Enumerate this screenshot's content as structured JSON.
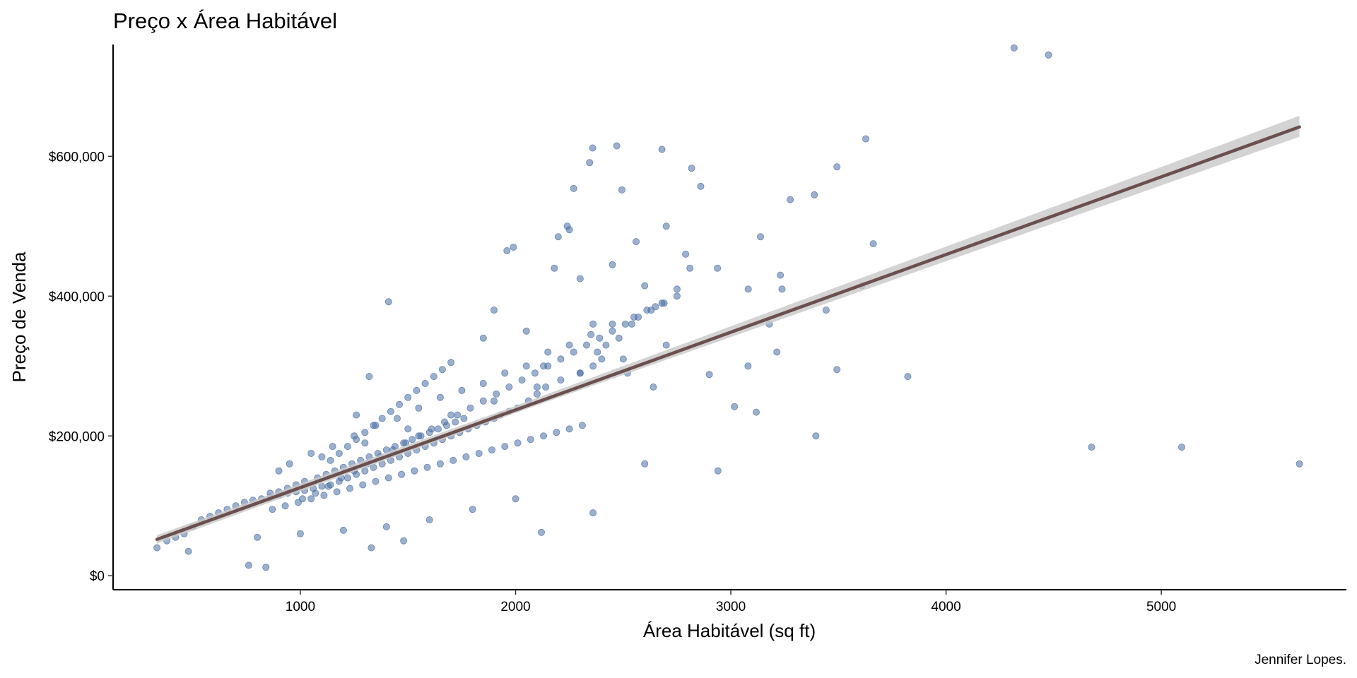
{
  "chart_data": {
    "type": "scatter",
    "title": "Preço x Área Habitável",
    "xlabel": "Área Habitável (sq ft)",
    "ylabel": "Preço de Venda",
    "caption": "Jennifer Lopes.",
    "xlim": [
      130,
      5860
    ],
    "ylim": [
      -20000,
      760000
    ],
    "x_ticks": [
      1000,
      2000,
      3000,
      4000,
      5000
    ],
    "x_tick_labels": [
      "1000",
      "2000",
      "3000",
      "4000",
      "5000"
    ],
    "y_ticks": [
      0,
      200000,
      400000,
      600000
    ],
    "y_tick_labels": [
      "$0",
      "$200,000",
      "$400,000",
      "$600,000"
    ],
    "grid": false,
    "colors": {
      "points": "#4a6fa5",
      "line": "#6b4f4f",
      "band": "#c8c8c8"
    },
    "trend_line": {
      "x": [
        334,
        5642
      ],
      "y": [
        52000,
        642000
      ]
    },
    "confidence_band": {
      "x": [
        334,
        2000,
        5642
      ],
      "lower": [
        46000,
        233000,
        628000
      ],
      "upper": [
        58000,
        243000,
        658000
      ]
    },
    "x": [
      4316,
      4476,
      3627,
      3493,
      3388,
      3276,
      2860,
      2818,
      2358,
      2470,
      2680,
      2344,
      2270,
      2494,
      3138,
      3230,
      3662,
      3609,
      3238,
      2938,
      3081,
      3080,
      3118,
      3179,
      3443,
      3214,
      3822,
      3493,
      3395,
      4676,
      5095,
      5642,
      2940,
      3017,
      2900,
      2240,
      2198,
      1990,
      1960,
      2250,
      2180,
      2300,
      2450,
      2560,
      2700,
      2600,
      2360,
      1410,
      1320,
      1260,
      1850,
      1900,
      2050,
      2130,
      2380,
      2520,
      2640,
      2790,
      2810,
      2750,
      2680,
      2610,
      2540,
      2480,
      2420,
      2400,
      2360,
      2300,
      2210,
      2140,
      2100,
      2060,
      2010,
      1970,
      1930,
      1900,
      1860,
      1820,
      1780,
      1740,
      1700,
      1660,
      1620,
      1580,
      1540,
      1500,
      1460,
      1420,
      1380,
      1340,
      1300,
      1260,
      1220,
      1180,
      1140,
      1100,
      1060,
      1020,
      980,
      940,
      900,
      860,
      820,
      780,
      740,
      700,
      660,
      620,
      580,
      540,
      500,
      460,
      420,
      380,
      334,
      480,
      760,
      840,
      1330,
      1480,
      2120,
      2360,
      2600,
      2000,
      1800,
      1600,
      1400,
      1200,
      1000,
      800,
      900,
      1100,
      1300,
      1500,
      1700,
      1900,
      2100,
      2300,
      2500,
      2700,
      950,
      1050,
      1150,
      1250,
      1350,
      1450,
      1550,
      1650,
      1750,
      1850,
      1950,
      2050,
      2150,
      2250,
      2350,
      2450,
      2550,
      2650,
      1080,
      1120,
      1160,
      1200,
      1240,
      1280,
      1320,
      1360,
      1400,
      1440,
      1480,
      1520,
      1560,
      1600,
      1640,
      1680,
      1720,
      1760,
      1020,
      980,
      940,
      900,
      860,
      1010,
      1070,
      1130,
      1190,
      1250,
      1310,
      1370,
      1430,
      1490,
      1550,
      1610,
      1670,
      1730,
      1790,
      1850,
      1910,
      1970,
      2030,
      2090,
      2150,
      2210,
      2270,
      2330,
      2390,
      2450,
      2510,
      2570,
      2630,
      2690,
      2750,
      870,
      930,
      990,
      1050,
      1110,
      1170,
      1230,
      1290,
      1350,
      1410,
      1470,
      1530,
      1590,
      1650,
      1710,
      1770,
      1830,
      1890,
      1950,
      2010,
      2070,
      2130,
      2190,
      2250,
      2310,
      1140,
      1180,
      1220,
      1260,
      1300,
      1340,
      1380,
      1420,
      1460,
      1500,
      1540,
      1580,
      1620,
      1660,
      1700
    ],
    "y": [
      755000,
      745000,
      625000,
      585000,
      545000,
      538000,
      557000,
      583000,
      612000,
      615000,
      610000,
      591000,
      554000,
      552000,
      485000,
      430000,
      475000,
      415000,
      410000,
      440000,
      410000,
      300000,
      234000,
      360000,
      380000,
      320000,
      285000,
      295000,
      200000,
      184000,
      184000,
      160000,
      150000,
      242000,
      288000,
      500000,
      485000,
      470000,
      465000,
      495000,
      440000,
      425000,
      445000,
      478000,
      500000,
      415000,
      360000,
      392000,
      285000,
      230000,
      340000,
      380000,
      350000,
      300000,
      320000,
      290000,
      270000,
      460000,
      440000,
      410000,
      390000,
      380000,
      360000,
      340000,
      330000,
      310000,
      300000,
      290000,
      280000,
      270000,
      260000,
      250000,
      240000,
      235000,
      230000,
      225000,
      220000,
      215000,
      210000,
      205000,
      200000,
      195000,
      190000,
      185000,
      180000,
      175000,
      170000,
      165000,
      160000,
      155000,
      150000,
      145000,
      140000,
      135000,
      130000,
      128000,
      125000,
      122000,
      120000,
      118000,
      115000,
      112000,
      110000,
      108000,
      105000,
      100000,
      95000,
      90000,
      85000,
      80000,
      70000,
      60000,
      55000,
      50000,
      40000,
      35000,
      15000,
      12000,
      40000,
      50000,
      62000,
      90000,
      160000,
      110000,
      95000,
      80000,
      70000,
      65000,
      60000,
      55000,
      150000,
      170000,
      190000,
      210000,
      230000,
      250000,
      270000,
      290000,
      310000,
      330000,
      160000,
      175000,
      185000,
      200000,
      215000,
      225000,
      240000,
      255000,
      265000,
      275000,
      290000,
      300000,
      320000,
      330000,
      345000,
      360000,
      370000,
      385000,
      140000,
      145000,
      150000,
      155000,
      160000,
      165000,
      170000,
      175000,
      180000,
      185000,
      190000,
      195000,
      200000,
      205000,
      210000,
      215000,
      220000,
      225000,
      135000,
      130000,
      125000,
      120000,
      118000,
      110000,
      118000,
      128000,
      140000,
      150000,
      160000,
      170000,
      180000,
      190000,
      200000,
      210000,
      220000,
      230000,
      240000,
      250000,
      260000,
      270000,
      280000,
      290000,
      300000,
      310000,
      320000,
      330000,
      340000,
      350000,
      360000,
      370000,
      380000,
      390000,
      400000,
      95000,
      100000,
      105000,
      110000,
      115000,
      120000,
      125000,
      130000,
      135000,
      140000,
      145000,
      150000,
      155000,
      160000,
      165000,
      170000,
      175000,
      180000,
      185000,
      190000,
      195000,
      200000,
      205000,
      210000,
      215000,
      165000,
      175000,
      185000,
      195000,
      205000,
      215000,
      225000,
      235000,
      245000,
      255000,
      265000,
      275000,
      285000,
      295000,
      305000
    ]
  }
}
